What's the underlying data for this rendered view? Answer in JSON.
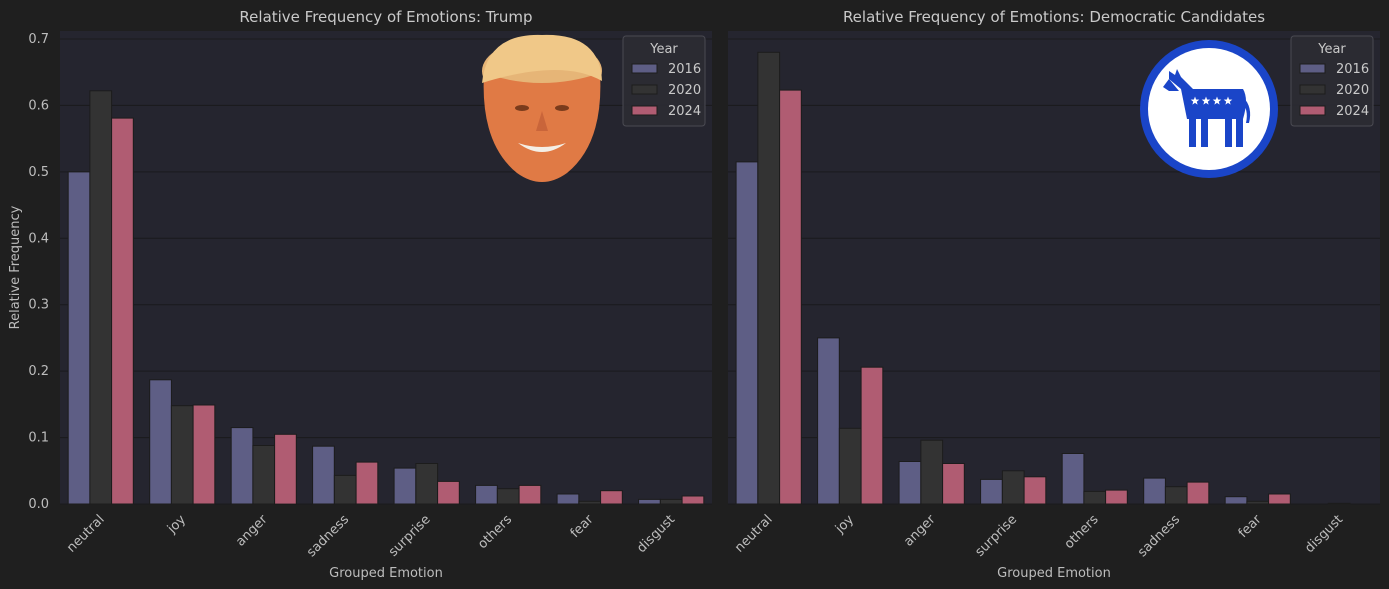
{
  "chart_data": [
    {
      "type": "bar",
      "title": "Relative Frequency of Emotions: Trump",
      "xlabel": "Grouped Emotion",
      "ylabel": "Relative Frequency",
      "ylim": [
        0,
        0.7
      ],
      "yticks": [
        "0.0",
        "0.1",
        "0.2",
        "0.3",
        "0.4",
        "0.5",
        "0.6",
        "0.7"
      ],
      "grid": true,
      "legend": {
        "title": "Year",
        "placement": "top-right"
      },
      "categories": [
        "neutral",
        "joy",
        "anger",
        "sadness",
        "surprise",
        "others",
        "fear",
        "disgust"
      ],
      "series": [
        {
          "name": "2016",
          "color": "#5e5e85",
          "values": [
            0.5,
            0.187,
            0.115,
            0.087,
            0.054,
            0.028,
            0.015,
            0.007
          ]
        },
        {
          "name": "2020",
          "color": "#333333",
          "values": [
            0.622,
            0.148,
            0.088,
            0.043,
            0.061,
            0.023,
            0.004,
            0.007
          ]
        },
        {
          "name": "2024",
          "color": "#b05c72",
          "values": [
            0.581,
            0.149,
            0.105,
            0.063,
            0.034,
            0.028,
            0.02,
            0.012
          ]
        }
      ],
      "image": "trump-face"
    },
    {
      "type": "bar",
      "title": "Relative Frequency of Emotions: Democratic Candidates",
      "xlabel": "Grouped Emotion",
      "ylabel": "",
      "ylim": [
        0,
        0.7
      ],
      "grid": true,
      "legend": {
        "title": "Year",
        "placement": "top-right"
      },
      "categories": [
        "neutral",
        "joy",
        "anger",
        "surprise",
        "others",
        "sadness",
        "fear",
        "disgust"
      ],
      "series": [
        {
          "name": "2016",
          "color": "#5e5e85",
          "values": [
            0.515,
            0.25,
            0.064,
            0.037,
            0.076,
            0.039,
            0.011,
            0.0
          ]
        },
        {
          "name": "2020",
          "color": "#333333",
          "values": [
            0.68,
            0.114,
            0.096,
            0.05,
            0.019,
            0.026,
            0.004,
            0.001
          ]
        },
        {
          "name": "2024",
          "color": "#b05c72",
          "values": [
            0.623,
            0.206,
            0.061,
            0.041,
            0.021,
            0.033,
            0.015,
            0.0
          ]
        }
      ],
      "image": "democratic-donkey-logo"
    }
  ]
}
